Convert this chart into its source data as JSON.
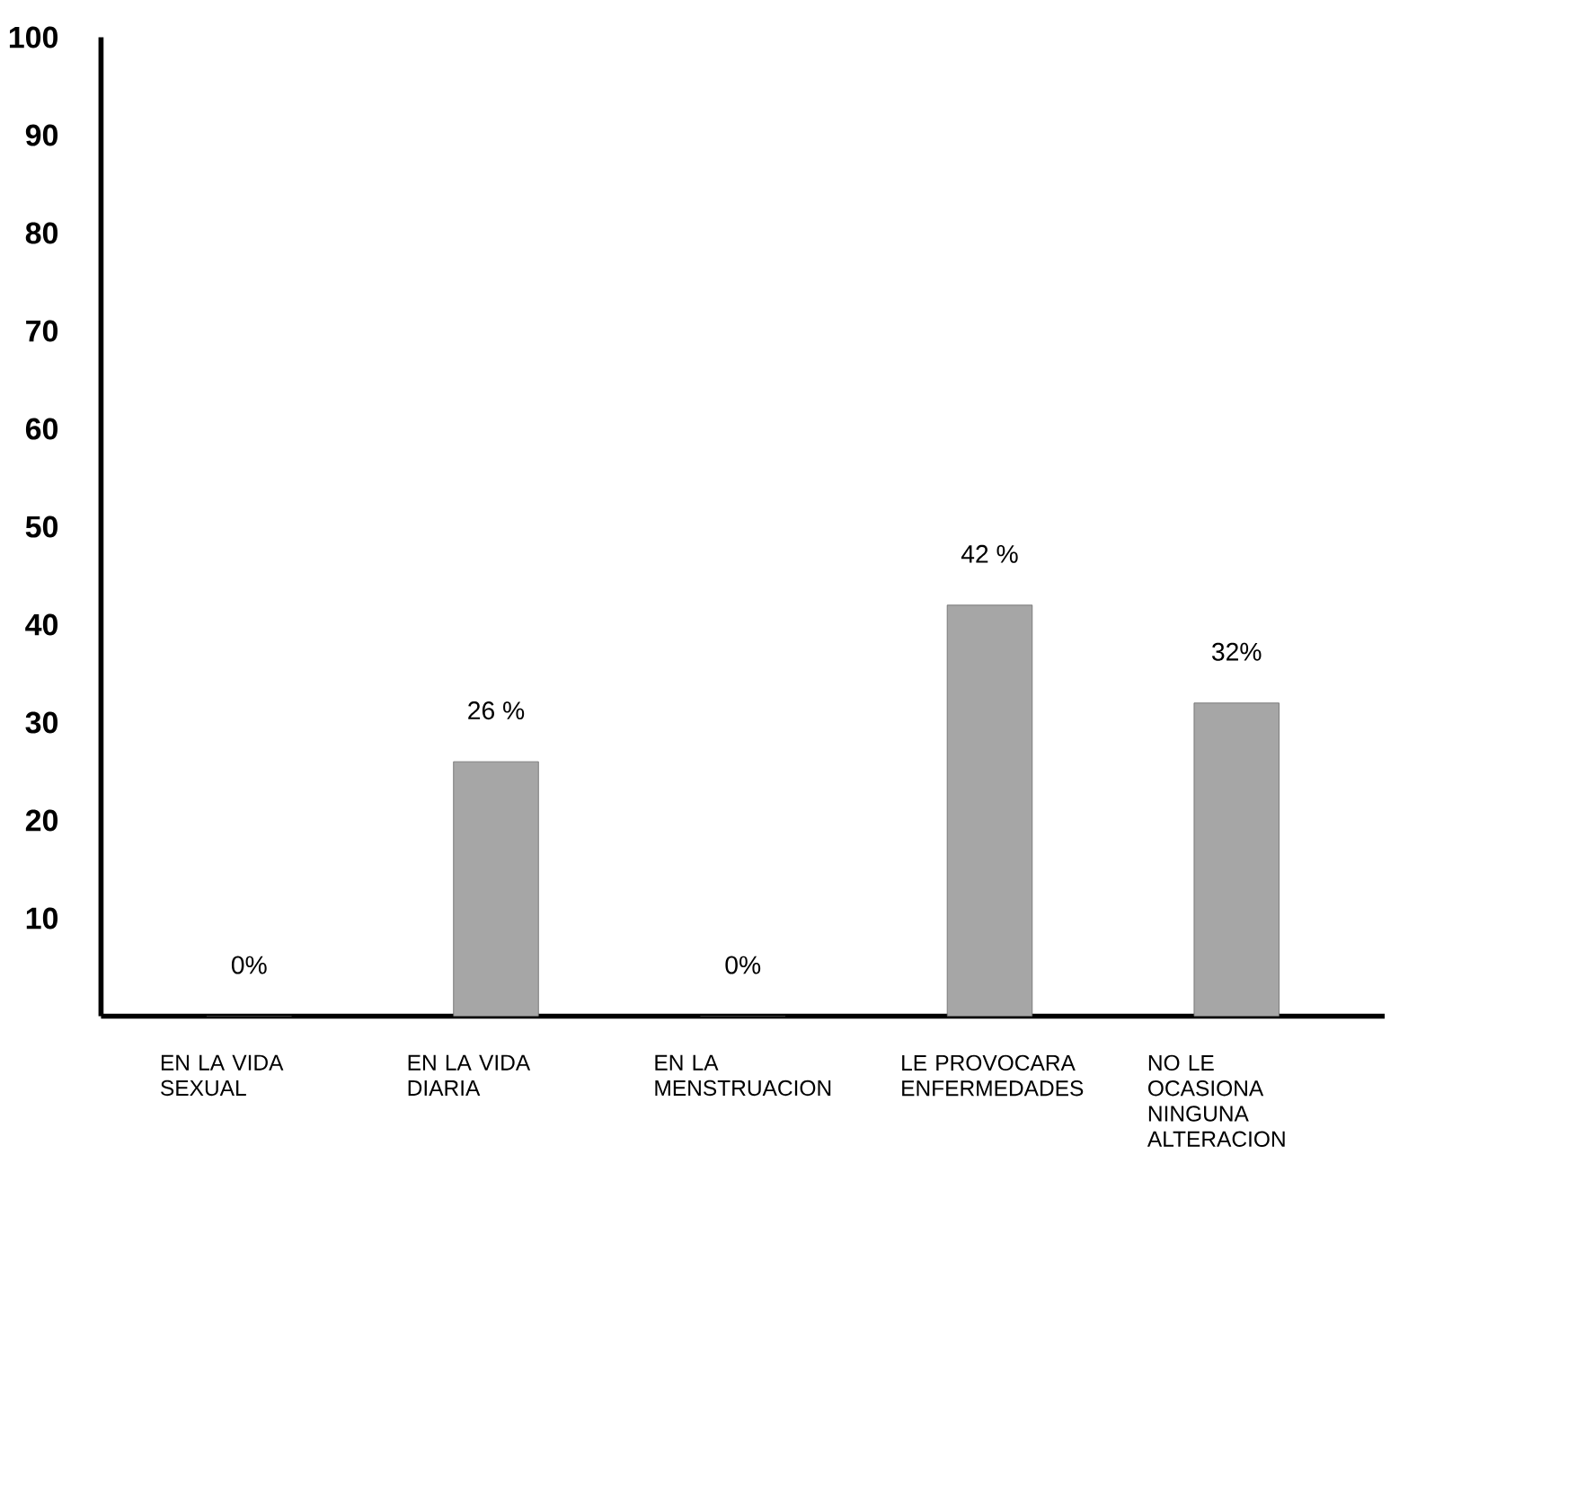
{
  "chart_data": {
    "type": "bar",
    "categories": [
      "EN LA VIDA SEXUAL",
      "EN LA VIDA DIARIA",
      "EN LA MENSTRUACION",
      "LE PROVOCARA ENFERMEDADES",
      "NO LE OCASIONA NINGUNA ALTERACION"
    ],
    "values": [
      0,
      26,
      0,
      42,
      32
    ],
    "value_labels": [
      "0%",
      "26 %",
      "0%",
      "42  %",
      "32%"
    ],
    "color": "#a6a6a6",
    "ylim": [
      0,
      100
    ],
    "yticks": [
      10,
      20,
      30,
      40,
      50,
      60,
      70,
      80,
      90,
      100
    ],
    "grid": false
  }
}
